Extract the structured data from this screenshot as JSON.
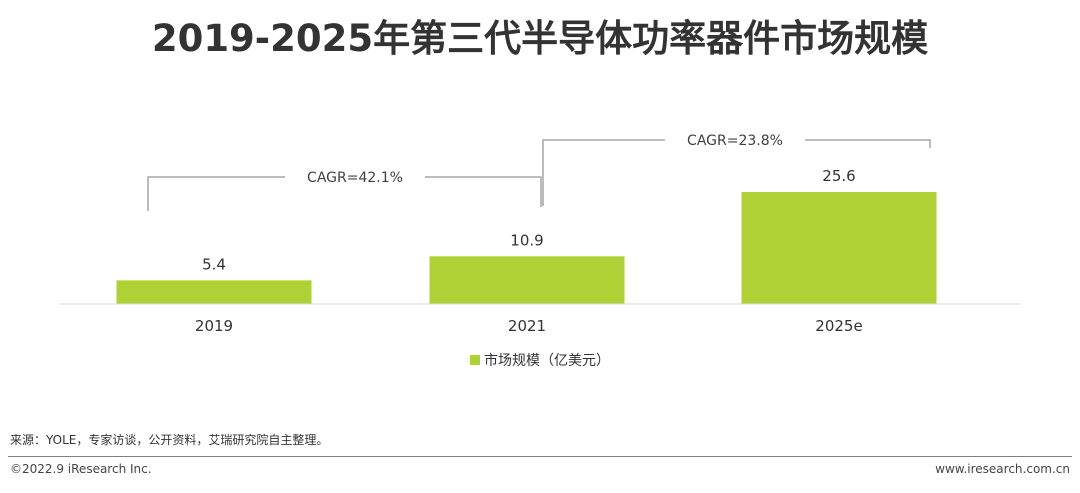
{
  "chart_data": {
    "type": "bar",
    "title": "2019-2025年第三代半导体功率器件市场规模",
    "categories": [
      "2019",
      "2021",
      "2025e"
    ],
    "series": [
      {
        "name": "市场规模（亿美元）",
        "values": [
          5.4,
          10.9,
          25.6
        ]
      }
    ],
    "ylim": [
      0,
      25.6
    ],
    "grid": false,
    "legend": "bottom-center",
    "annotations": [
      {
        "text": "CAGR=42.1%",
        "from": "2019",
        "to": "2021"
      },
      {
        "text": "CAGR=23.8%",
        "from": "2021",
        "to": "2025e"
      }
    ]
  },
  "colors": {
    "bar": "#afd135",
    "bracket": "#a6a6a6",
    "baseline": "#d9d9d9"
  },
  "source": "来源：YOLE，专家访谈，公开资料，艾瑞研究院自主整理。",
  "footer": {
    "copyright": "©2022.9 iResearch Inc.",
    "website": "www.iresearch.com.cn"
  }
}
